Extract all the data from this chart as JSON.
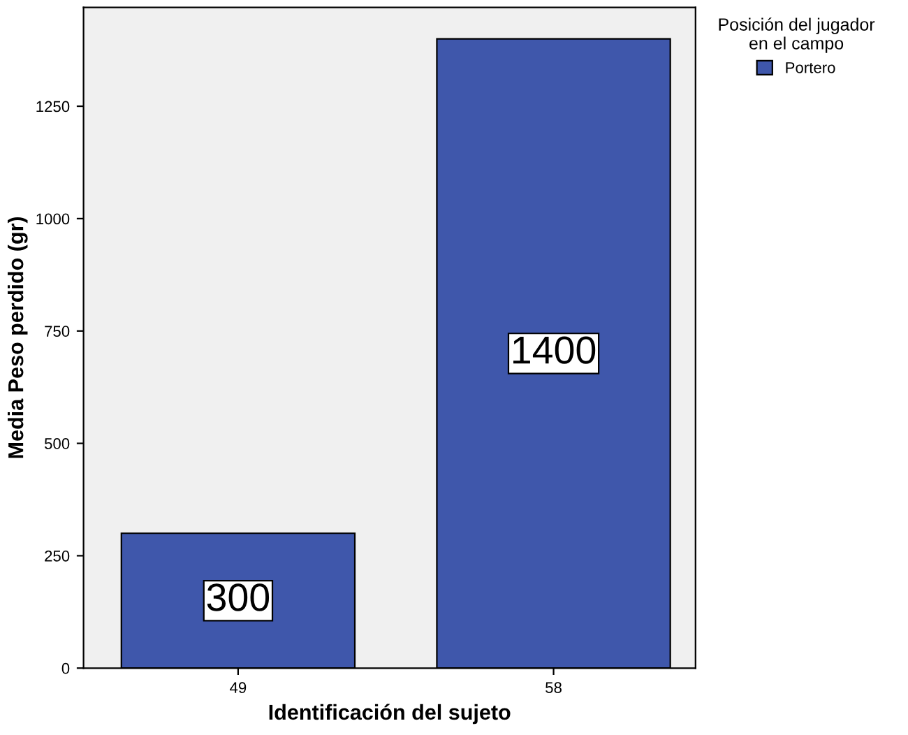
{
  "chart_data": {
    "type": "bar",
    "xlabel": "Identificación del sujeto",
    "ylabel": "Media Peso perdido (gr)",
    "legend_title": "Posición del jugador\nen el campo",
    "categories": [
      "49",
      "58"
    ],
    "series": [
      {
        "name": "Portero",
        "color": "#3f57ab",
        "values": [
          300,
          1400
        ]
      }
    ],
    "ylim": [
      0,
      1470
    ],
    "yticks": [
      0,
      250,
      500,
      750,
      1000,
      1250
    ],
    "grid": false,
    "legend": "top right",
    "data_labels": true
  }
}
